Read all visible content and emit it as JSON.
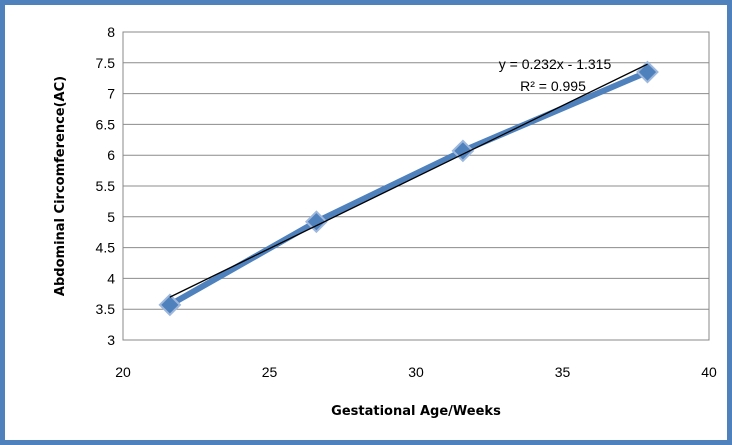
{
  "chart_data": {
    "type": "scatter",
    "xlabel": "Gestational Age/Weeks",
    "ylabel": "Abdominal Circomference(AC)",
    "xlim": [
      20,
      40
    ],
    "ylim": [
      3,
      8
    ],
    "x_ticks": [
      "20",
      "25",
      "30",
      "35",
      "40"
    ],
    "y_ticks": [
      "3",
      "3.5",
      "4",
      "4.5",
      "5",
      "5.5",
      "6",
      "6.5",
      "7",
      "7.5",
      "8"
    ],
    "grid": true,
    "series": [
      {
        "x": [
          21.6,
          26.6,
          31.6,
          37.9
        ],
        "y": [
          3.57,
          4.92,
          6.07,
          7.35
        ],
        "color": "#4f81bd",
        "marker": "diamond"
      }
    ],
    "trendline": {
      "slope": 0.232,
      "intercept": -1.315,
      "x_range": [
        21.6,
        37.9
      ],
      "color": "#000000",
      "equation": "y = 0.232x - 1.315",
      "r_squared": "R² = 0.995"
    }
  }
}
